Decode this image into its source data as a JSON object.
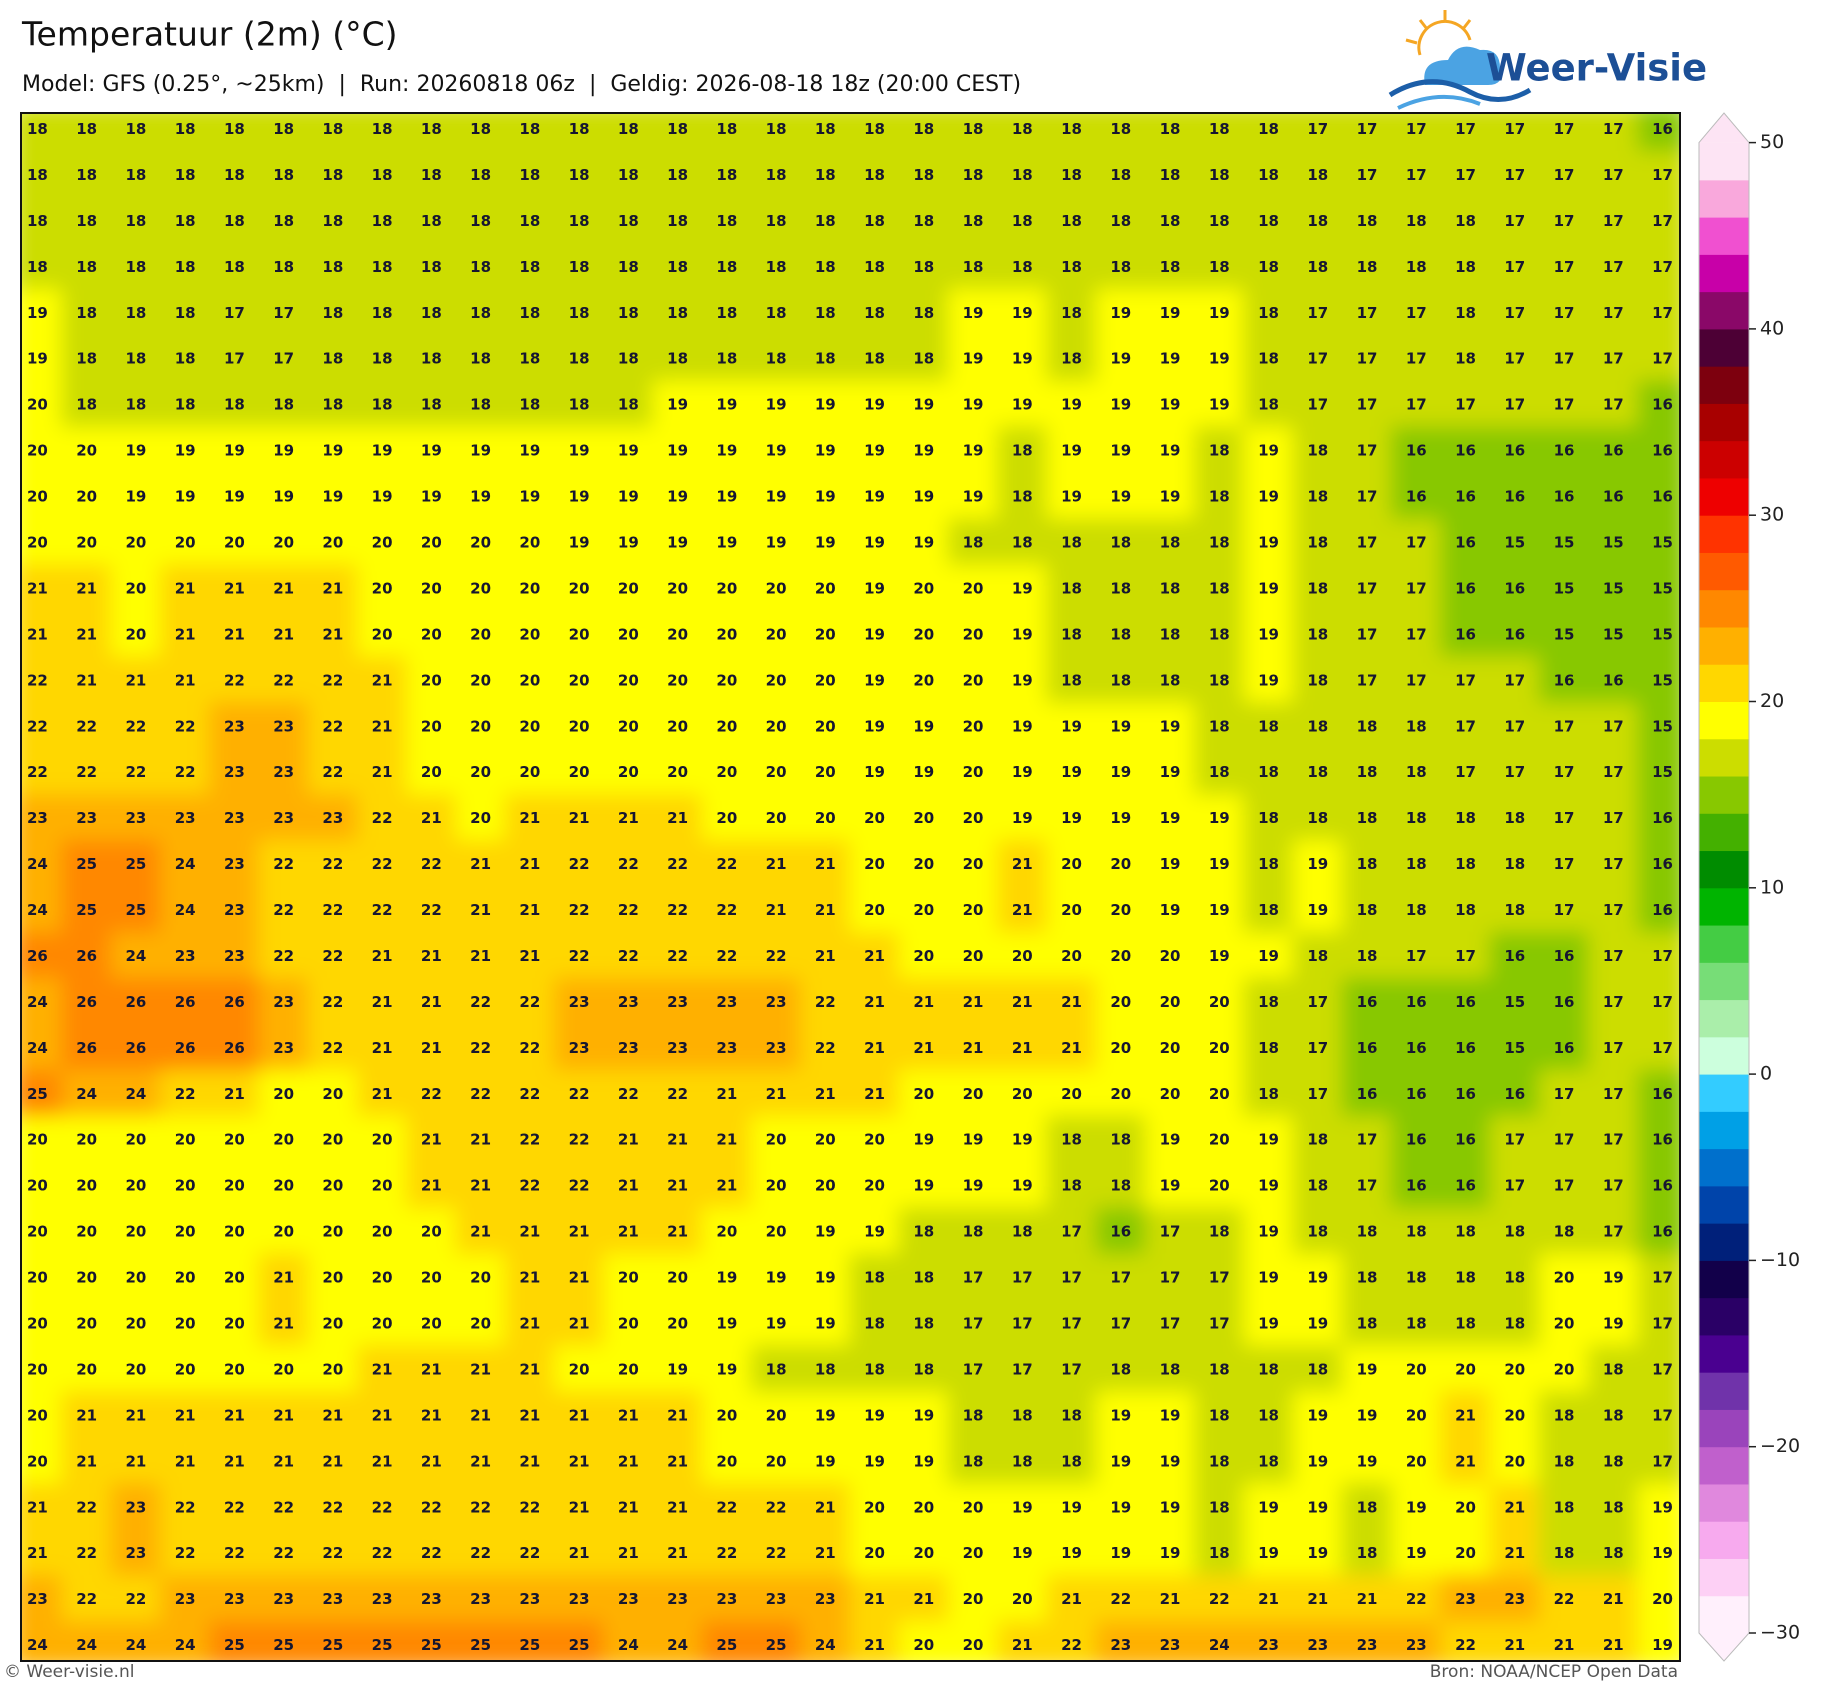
{
  "chart_data": {
    "type": "heatmap",
    "title": "Temperatuur (2m) (°C)",
    "subtitle": "Model: GFS (0.25°, ~25km)  |  Run: 20260818 06z  |  Geldig: 2026-08-18 18z (20:00 CEST)",
    "logo_text": "Weer-Visie",
    "credit": "© Weer-visie.nl",
    "source": "Bron: NOAA/NCEP Open Data",
    "values": [
      [
        18,
        18,
        18,
        18,
        18,
        18,
        18,
        18,
        18,
        18,
        18,
        18,
        18,
        18,
        18,
        18,
        18,
        18,
        18,
        18,
        18,
        18,
        18,
        18,
        18,
        18,
        17,
        17,
        17,
        17,
        17,
        17,
        17,
        16
      ],
      [
        18,
        18,
        18,
        18,
        18,
        18,
        18,
        18,
        18,
        18,
        18,
        18,
        18,
        18,
        18,
        18,
        18,
        18,
        18,
        18,
        18,
        18,
        18,
        18,
        18,
        18,
        18,
        17,
        17,
        17,
        17,
        17,
        17,
        17
      ],
      [
        18,
        18,
        18,
        18,
        18,
        18,
        18,
        18,
        18,
        18,
        18,
        18,
        18,
        18,
        18,
        18,
        18,
        18,
        18,
        18,
        18,
        18,
        18,
        18,
        18,
        18,
        18,
        18,
        18,
        18,
        17,
        17,
        17,
        17
      ],
      [
        18,
        18,
        18,
        18,
        18,
        18,
        18,
        18,
        18,
        18,
        18,
        18,
        18,
        18,
        18,
        18,
        18,
        18,
        18,
        18,
        18,
        18,
        18,
        18,
        18,
        18,
        18,
        18,
        18,
        18,
        17,
        17,
        17,
        17
      ],
      [
        19,
        18,
        18,
        18,
        17,
        17,
        18,
        18,
        18,
        18,
        18,
        18,
        18,
        18,
        18,
        18,
        18,
        18,
        18,
        19,
        19,
        18,
        19,
        19,
        19,
        18,
        17,
        17,
        17,
        18,
        17,
        17,
        17,
        17
      ],
      [
        19,
        18,
        18,
        18,
        17,
        17,
        18,
        18,
        18,
        18,
        18,
        18,
        18,
        18,
        18,
        18,
        18,
        18,
        18,
        19,
        19,
        18,
        19,
        19,
        19,
        18,
        17,
        17,
        17,
        18,
        17,
        17,
        17,
        17
      ],
      [
        20,
        18,
        18,
        18,
        18,
        18,
        18,
        18,
        18,
        18,
        18,
        18,
        18,
        19,
        19,
        19,
        19,
        19,
        19,
        19,
        19,
        19,
        19,
        19,
        19,
        18,
        17,
        17,
        17,
        17,
        17,
        17,
        17,
        16
      ],
      [
        20,
        20,
        19,
        19,
        19,
        19,
        19,
        19,
        19,
        19,
        19,
        19,
        19,
        19,
        19,
        19,
        19,
        19,
        19,
        19,
        18,
        19,
        19,
        19,
        18,
        19,
        18,
        17,
        16,
        16,
        16,
        16,
        16,
        16
      ],
      [
        20,
        20,
        19,
        19,
        19,
        19,
        19,
        19,
        19,
        19,
        19,
        19,
        19,
        19,
        19,
        19,
        19,
        19,
        19,
        19,
        18,
        19,
        19,
        19,
        18,
        19,
        18,
        17,
        16,
        16,
        16,
        16,
        16,
        16
      ],
      [
        20,
        20,
        20,
        20,
        20,
        20,
        20,
        20,
        20,
        20,
        20,
        19,
        19,
        19,
        19,
        19,
        19,
        19,
        19,
        18,
        18,
        18,
        18,
        18,
        18,
        19,
        18,
        17,
        17,
        16,
        15,
        15,
        15,
        15
      ],
      [
        21,
        21,
        20,
        21,
        21,
        21,
        21,
        20,
        20,
        20,
        20,
        20,
        20,
        20,
        20,
        20,
        20,
        19,
        20,
        20,
        19,
        18,
        18,
        18,
        18,
        19,
        18,
        17,
        17,
        16,
        16,
        15,
        15,
        15
      ],
      [
        21,
        21,
        20,
        21,
        21,
        21,
        21,
        20,
        20,
        20,
        20,
        20,
        20,
        20,
        20,
        20,
        20,
        19,
        20,
        20,
        19,
        18,
        18,
        18,
        18,
        19,
        18,
        17,
        17,
        16,
        16,
        15,
        15,
        15
      ],
      [
        22,
        21,
        21,
        21,
        22,
        22,
        22,
        21,
        20,
        20,
        20,
        20,
        20,
        20,
        20,
        20,
        20,
        19,
        20,
        20,
        19,
        18,
        18,
        18,
        18,
        19,
        18,
        17,
        17,
        17,
        17,
        16,
        16,
        15
      ],
      [
        22,
        22,
        22,
        22,
        23,
        23,
        22,
        21,
        20,
        20,
        20,
        20,
        20,
        20,
        20,
        20,
        20,
        19,
        19,
        20,
        19,
        19,
        19,
        19,
        18,
        18,
        18,
        18,
        18,
        17,
        17,
        17,
        17,
        15
      ],
      [
        22,
        22,
        22,
        22,
        23,
        23,
        22,
        21,
        20,
        20,
        20,
        20,
        20,
        20,
        20,
        20,
        20,
        19,
        19,
        20,
        19,
        19,
        19,
        19,
        18,
        18,
        18,
        18,
        18,
        17,
        17,
        17,
        17,
        15
      ],
      [
        23,
        23,
        23,
        23,
        23,
        23,
        23,
        22,
        21,
        20,
        21,
        21,
        21,
        21,
        20,
        20,
        20,
        20,
        20,
        20,
        19,
        19,
        19,
        19,
        19,
        18,
        18,
        18,
        18,
        18,
        18,
        17,
        17,
        16
      ],
      [
        24,
        25,
        25,
        24,
        23,
        22,
        22,
        22,
        22,
        21,
        21,
        22,
        22,
        22,
        22,
        21,
        21,
        20,
        20,
        20,
        21,
        20,
        20,
        19,
        19,
        18,
        19,
        18,
        18,
        18,
        18,
        17,
        17,
        16
      ],
      [
        24,
        25,
        25,
        24,
        23,
        22,
        22,
        22,
        22,
        21,
        21,
        22,
        22,
        22,
        22,
        21,
        21,
        20,
        20,
        20,
        21,
        20,
        20,
        19,
        19,
        18,
        19,
        18,
        18,
        18,
        18,
        17,
        17,
        16
      ],
      [
        26,
        26,
        24,
        23,
        23,
        22,
        22,
        21,
        21,
        21,
        21,
        22,
        22,
        22,
        22,
        22,
        21,
        21,
        20,
        20,
        20,
        20,
        20,
        20,
        19,
        19,
        18,
        18,
        17,
        17,
        16,
        16,
        17,
        17
      ],
      [
        24,
        26,
        26,
        26,
        26,
        23,
        22,
        21,
        21,
        22,
        22,
        23,
        23,
        23,
        23,
        23,
        22,
        21,
        21,
        21,
        21,
        21,
        20,
        20,
        20,
        18,
        17,
        16,
        16,
        16,
        15,
        16,
        17,
        17
      ],
      [
        24,
        26,
        26,
        26,
        26,
        23,
        22,
        21,
        21,
        22,
        22,
        23,
        23,
        23,
        23,
        23,
        22,
        21,
        21,
        21,
        21,
        21,
        20,
        20,
        20,
        18,
        17,
        16,
        16,
        16,
        15,
        16,
        17,
        17
      ],
      [
        25,
        24,
        24,
        22,
        21,
        20,
        20,
        21,
        22,
        22,
        22,
        22,
        22,
        22,
        21,
        21,
        21,
        21,
        20,
        20,
        20,
        20,
        20,
        20,
        20,
        18,
        17,
        16,
        16,
        16,
        16,
        17,
        17,
        16
      ],
      [
        20,
        20,
        20,
        20,
        20,
        20,
        20,
        20,
        21,
        21,
        22,
        22,
        21,
        21,
        21,
        20,
        20,
        20,
        19,
        19,
        19,
        18,
        18,
        19,
        20,
        19,
        18,
        17,
        16,
        16,
        17,
        17,
        17,
        16
      ],
      [
        20,
        20,
        20,
        20,
        20,
        20,
        20,
        20,
        21,
        21,
        22,
        22,
        21,
        21,
        21,
        20,
        20,
        20,
        19,
        19,
        19,
        18,
        18,
        19,
        20,
        19,
        18,
        17,
        16,
        16,
        17,
        17,
        17,
        16
      ],
      [
        20,
        20,
        20,
        20,
        20,
        20,
        20,
        20,
        20,
        21,
        21,
        21,
        21,
        21,
        20,
        20,
        19,
        19,
        18,
        18,
        18,
        17,
        16,
        17,
        18,
        19,
        18,
        18,
        18,
        18,
        18,
        18,
        17,
        16
      ],
      [
        20,
        20,
        20,
        20,
        20,
        21,
        20,
        20,
        20,
        20,
        21,
        21,
        20,
        20,
        19,
        19,
        19,
        18,
        18,
        17,
        17,
        17,
        17,
        17,
        17,
        19,
        19,
        18,
        18,
        18,
        18,
        20,
        19,
        17
      ],
      [
        20,
        20,
        20,
        20,
        20,
        21,
        20,
        20,
        20,
        20,
        21,
        21,
        20,
        20,
        19,
        19,
        19,
        18,
        18,
        17,
        17,
        17,
        17,
        17,
        17,
        19,
        19,
        18,
        18,
        18,
        18,
        20,
        19,
        17
      ],
      [
        20,
        20,
        20,
        20,
        20,
        20,
        20,
        21,
        21,
        21,
        21,
        20,
        20,
        19,
        19,
        18,
        18,
        18,
        18,
        17,
        17,
        17,
        18,
        18,
        18,
        18,
        18,
        19,
        20,
        20,
        20,
        20,
        18,
        17
      ],
      [
        20,
        21,
        21,
        21,
        21,
        21,
        21,
        21,
        21,
        21,
        21,
        21,
        21,
        21,
        20,
        20,
        19,
        19,
        19,
        18,
        18,
        18,
        19,
        19,
        18,
        18,
        19,
        19,
        20,
        21,
        20,
        18,
        18,
        17
      ],
      [
        20,
        21,
        21,
        21,
        21,
        21,
        21,
        21,
        21,
        21,
        21,
        21,
        21,
        21,
        20,
        20,
        19,
        19,
        19,
        18,
        18,
        18,
        19,
        19,
        18,
        18,
        19,
        19,
        20,
        21,
        20,
        18,
        18,
        17
      ],
      [
        21,
        22,
        23,
        22,
        22,
        22,
        22,
        22,
        22,
        22,
        22,
        21,
        21,
        21,
        22,
        22,
        21,
        20,
        20,
        20,
        19,
        19,
        19,
        19,
        18,
        19,
        19,
        18,
        19,
        20,
        21,
        18,
        18,
        19
      ],
      [
        21,
        22,
        23,
        22,
        22,
        22,
        22,
        22,
        22,
        22,
        22,
        21,
        21,
        21,
        22,
        22,
        21,
        20,
        20,
        20,
        19,
        19,
        19,
        19,
        18,
        19,
        19,
        18,
        19,
        20,
        21,
        18,
        18,
        19
      ],
      [
        23,
        22,
        22,
        23,
        23,
        23,
        23,
        23,
        23,
        23,
        23,
        23,
        23,
        23,
        23,
        23,
        23,
        21,
        21,
        20,
        20,
        21,
        22,
        21,
        22,
        21,
        21,
        21,
        22,
        23,
        23,
        22,
        21,
        20
      ],
      [
        24,
        24,
        24,
        24,
        25,
        25,
        25,
        25,
        25,
        25,
        25,
        25,
        24,
        24,
        25,
        25,
        24,
        21,
        20,
        20,
        21,
        22,
        23,
        23,
        24,
        23,
        23,
        23,
        23,
        22,
        21,
        21,
        21,
        19
      ]
    ],
    "colorbar": {
      "lim": [
        -30,
        50
      ],
      "ticks": [
        50,
        40,
        30,
        20,
        10,
        0,
        {
          "value": -10,
          "label": "−10"
        },
        {
          "value": -20,
          "label": "−20"
        },
        {
          "value": -30,
          "label": "−30"
        }
      ],
      "colors": [
        "#fff0fc",
        "#fdd0f5",
        "#f7aaee",
        "#e088dd",
        "#c060cc",
        "#9a44bb",
        "#7033aa",
        "#4a0090",
        "#2a0066",
        "#12004a",
        "#00207a",
        "#0044aa",
        "#0070cc",
        "#00a0e6",
        "#33ccff",
        "#ccffdd",
        "#aaeeaa",
        "#77dd77",
        "#44cc44",
        "#00b400",
        "#008c00",
        "#44b000",
        "#88c800",
        "#ccdd00",
        "#ffff00",
        "#ffd700",
        "#ffb000",
        "#ff8800",
        "#ff5a00",
        "#ff3300",
        "#ee0000",
        "#cc0000",
        "#a80000",
        "#7d000e",
        "#4d0035",
        "#8a0868",
        "#c800a8",
        "#f050d0",
        "#f9a8dc",
        "#fde4f4"
      ]
    }
  }
}
